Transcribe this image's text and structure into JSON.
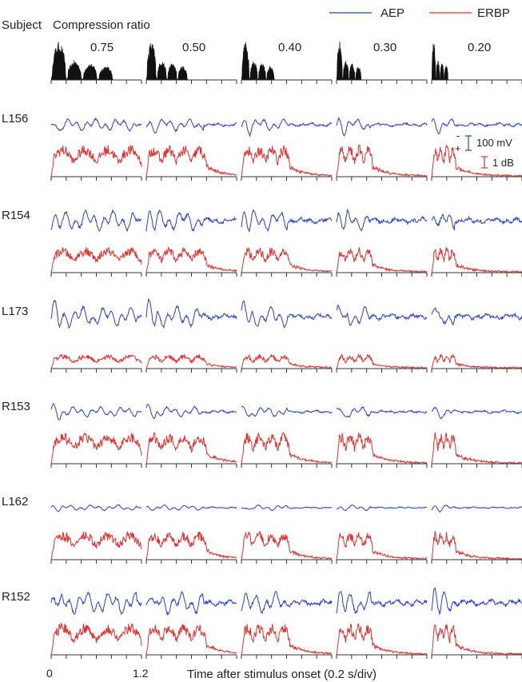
{
  "chart_data": {
    "type": "line",
    "header": {
      "subject_label": "Subject",
      "ratio_title": "Compression ratio"
    },
    "legend": [
      {
        "name": "AEP",
        "color": "#2a3fd6"
      },
      {
        "name": "ERBP",
        "color": "#e03030"
      }
    ],
    "compression_ratios": [
      "0.75",
      "0.50",
      "0.40",
      "0.30",
      "0.20"
    ],
    "speech_envelope_syllables": [
      4,
      4,
      4,
      4,
      4
    ],
    "subjects": [
      {
        "id": "L156",
        "aep_amplitude": 0.55,
        "erbp_amplitude": 1.0
      },
      {
        "id": "R154",
        "aep_amplitude": 0.9,
        "erbp_amplitude": 0.8
      },
      {
        "id": "L173",
        "aep_amplitude": 0.9,
        "erbp_amplitude": 0.45
      },
      {
        "id": "R153",
        "aep_amplitude": 0.45,
        "erbp_amplitude": 1.0
      },
      {
        "id": "L162",
        "aep_amplitude": 0.25,
        "erbp_amplitude": 0.9
      },
      {
        "id": "R152",
        "aep_amplitude": 1.0,
        "erbp_amplitude": 1.0
      }
    ],
    "scale_bars": {
      "aep_label": "100 mV",
      "erbp_label": "1 dB",
      "minus": "-",
      "plus": "+"
    },
    "x_axis": {
      "tick_start": "0",
      "tick_end": "1.2",
      "label": "Time after stimulus onset (0.2 s/div)",
      "divisions_per_panel": 6
    }
  }
}
